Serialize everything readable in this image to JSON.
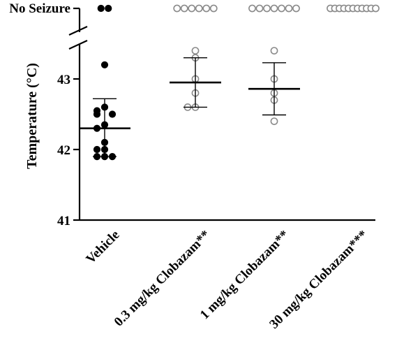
{
  "chart_data": {
    "type": "scatter",
    "ylabel": "Temperature (°C)",
    "y_ticks": [
      "41",
      "42",
      "43"
    ],
    "ylim": [
      41,
      44
    ],
    "axis_break": true,
    "no_seizure_label": "No Seizure",
    "colors": {
      "vehicle": "#000000",
      "treated": "#8a8a8a"
    },
    "groups": [
      {
        "category": "Vehicle",
        "filled": true,
        "points": [
          43.2,
          42.6,
          42.55,
          42.5,
          42.5,
          42.35,
          42.3,
          42.1,
          42.0,
          42.0,
          41.9,
          41.9,
          41.9
        ],
        "mean": 42.3,
        "sd_upper": 42.72,
        "sd_lower": 41.9,
        "no_seizure_count": 2
      },
      {
        "category": "0.3 mg/kg Clobazam**",
        "filled": false,
        "points": [
          43.4,
          43.3,
          43.0,
          42.8,
          42.6,
          42.6
        ],
        "mean": 42.95,
        "sd_upper": 43.3,
        "sd_lower": 42.6,
        "no_seizure_count": 6
      },
      {
        "category": "1 mg/kg Clobazam**",
        "filled": false,
        "points": [
          43.4,
          43.0,
          42.8,
          42.7,
          42.4
        ],
        "mean": 42.86,
        "sd_upper": 43.23,
        "sd_lower": 42.49,
        "no_seizure_count": 7
      },
      {
        "category": "30 mg/kg Clobazam***",
        "filled": false,
        "points": [],
        "mean": null,
        "sd_upper": null,
        "sd_lower": null,
        "no_seizure_count": 11
      }
    ]
  }
}
